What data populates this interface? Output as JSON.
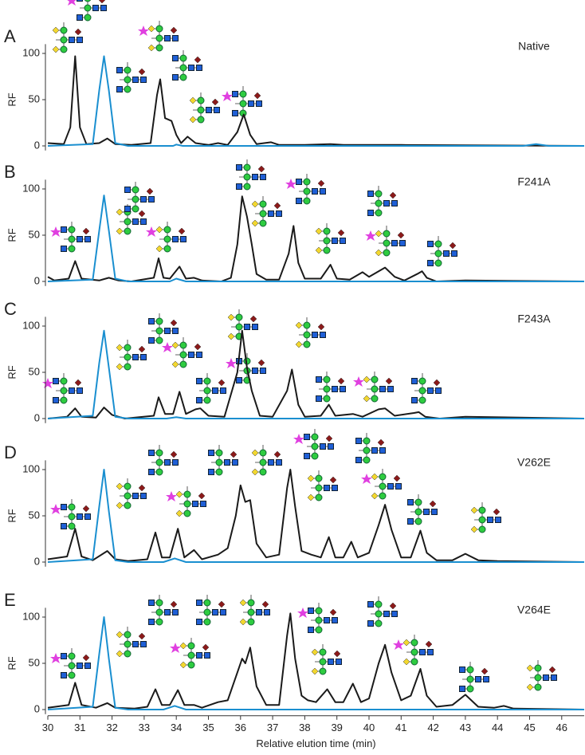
{
  "chart_data": [
    {
      "type": "line",
      "label": "A",
      "title": "Native",
      "ylabel": "RF",
      "ylim": [
        -5,
        110
      ],
      "yticks": [
        0,
        50,
        100
      ],
      "xlim": [
        30,
        46.7
      ],
      "series": [
        {
          "color": "#1a1a1a",
          "x": [
            30,
            30.5,
            30.7,
            30.85,
            31,
            31.2,
            31.6,
            31.85,
            32.1,
            32.6,
            33.2,
            33.4,
            33.5,
            33.65,
            33.85,
            34,
            34.15,
            34.35,
            34.6,
            35,
            35.3,
            35.6,
            35.9,
            36.1,
            36.3,
            36.5,
            36.95,
            37.2,
            38,
            38.8,
            39.2,
            41,
            46.7
          ],
          "values": [
            3,
            2,
            20,
            97,
            20,
            2,
            3,
            8,
            2,
            1,
            3,
            55,
            72,
            30,
            27,
            12,
            3,
            10,
            3,
            1,
            3,
            1,
            15,
            34,
            12,
            2,
            4,
            1,
            1,
            2,
            1,
            1,
            0
          ]
        },
        {
          "color": "#1a8fd0",
          "x": [
            30,
            31.4,
            31.6,
            31.75,
            31.9,
            32.1,
            32.5,
            33.9,
            34,
            34.2,
            44.8,
            45.2,
            45.6,
            46.7
          ],
          "values": [
            0,
            2,
            60,
            97,
            60,
            3,
            0,
            0,
            1.5,
            0,
            0,
            2,
            0,
            0
          ]
        }
      ]
    },
    {
      "type": "line",
      "label": "B",
      "title": "F241A",
      "ylabel": "RF",
      "ylim": [
        -5,
        110
      ],
      "yticks": [
        0,
        50,
        100
      ],
      "xlim": [
        30,
        46.7
      ],
      "series": [
        {
          "color": "#1a1a1a",
          "x": [
            30,
            30.2,
            30.65,
            30.85,
            31.05,
            31.6,
            31.9,
            32.2,
            32.6,
            33.3,
            33.45,
            33.6,
            33.8,
            34.1,
            34.3,
            34.55,
            34.8,
            35.4,
            35.7,
            35.9,
            36.05,
            36.2,
            36.35,
            36.5,
            36.8,
            37.2,
            37.5,
            37.65,
            37.8,
            38,
            38.5,
            38.8,
            39,
            39.4,
            39.8,
            40,
            40.5,
            40.8,
            41.1,
            41.5,
            41.65,
            41.8,
            42.1,
            43,
            46.7
          ],
          "values": [
            5,
            1,
            3,
            22,
            3,
            1,
            4,
            1,
            0,
            4,
            25,
            4,
            3,
            16,
            3,
            4,
            1,
            0,
            4,
            40,
            92,
            70,
            40,
            8,
            2,
            2,
            30,
            60,
            20,
            3,
            3,
            18,
            3,
            2,
            10,
            5,
            15,
            5,
            1,
            8,
            11,
            4,
            0,
            1,
            0
          ]
        },
        {
          "color": "#1a8fd0",
          "x": [
            30,
            31.4,
            31.6,
            31.75,
            31.9,
            32.1,
            32.5,
            33.8,
            34,
            34.3,
            46.7
          ],
          "values": [
            0,
            2,
            55,
            93,
            55,
            3,
            0,
            0,
            3,
            0,
            0
          ]
        }
      ]
    },
    {
      "type": "line",
      "label": "C",
      "title": "F243A",
      "ylabel": "RF",
      "ylim": [
        -5,
        110
      ],
      "yticks": [
        0,
        50,
        100
      ],
      "xlim": [
        30,
        46.7
      ],
      "series": [
        {
          "color": "#1a1a1a",
          "x": [
            30,
            30.6,
            30.85,
            31.05,
            31.5,
            31.75,
            32,
            32.4,
            33.3,
            33.45,
            33.65,
            33.9,
            34.1,
            34.3,
            34.6,
            34.75,
            35,
            35.5,
            35.9,
            36.05,
            36.2,
            36.35,
            36.6,
            37,
            37.45,
            37.6,
            37.8,
            38,
            38.5,
            38.75,
            38.95,
            39.5,
            39.8,
            40.3,
            40.5,
            40.8,
            41.4,
            41.55,
            41.75,
            42.2,
            43,
            46.7
          ],
          "values": [
            0,
            2,
            11,
            2,
            1,
            12,
            4,
            0,
            3,
            23,
            5,
            5,
            29,
            5,
            10,
            11,
            3,
            2,
            50,
            95,
            55,
            30,
            3,
            2,
            30,
            53,
            15,
            2,
            3,
            15,
            3,
            5,
            2,
            10,
            11,
            3,
            6,
            7,
            2,
            0,
            2,
            0
          ]
        },
        {
          "color": "#1a8fd0",
          "x": [
            30,
            31.4,
            31.6,
            31.75,
            31.9,
            32.1,
            32.5,
            33.7,
            34,
            34.3,
            46.7
          ],
          "values": [
            0,
            3,
            60,
            95,
            55,
            2,
            0,
            0,
            1.5,
            0,
            0
          ]
        }
      ]
    },
    {
      "type": "line",
      "label": "D",
      "title": "V262E",
      "ylabel": "RF",
      "ylim": [
        -5,
        110
      ],
      "yticks": [
        0,
        50,
        100
      ],
      "xlim": [
        30,
        46.7
      ],
      "series": [
        {
          "color": "#1a1a1a",
          "x": [
            30,
            30.6,
            30.85,
            31.05,
            31.4,
            31.85,
            32.1,
            32.5,
            33.1,
            33.35,
            33.55,
            33.8,
            34.05,
            34.25,
            34.55,
            34.8,
            35.3,
            35.6,
            35.85,
            36,
            36.15,
            36.3,
            36.5,
            36.8,
            37.2,
            37.45,
            37.55,
            37.7,
            37.9,
            38.2,
            38.5,
            38.75,
            38.95,
            39.2,
            39.45,
            39.65,
            40,
            40.3,
            40.5,
            40.7,
            41,
            41.3,
            41.6,
            41.8,
            42.1,
            42.6,
            43,
            43.4,
            44,
            46.7
          ],
          "values": [
            3,
            6,
            36,
            6,
            2,
            12,
            3,
            1,
            3,
            32,
            5,
            5,
            36,
            5,
            13,
            3,
            8,
            15,
            50,
            83,
            65,
            67,
            20,
            5,
            8,
            80,
            100,
            60,
            12,
            8,
            5,
            27,
            5,
            5,
            22,
            5,
            10,
            40,
            62,
            35,
            5,
            5,
            34,
            10,
            2,
            2,
            9,
            2,
            1,
            0
          ]
        },
        {
          "color": "#1a8fd0",
          "x": [
            30,
            31.4,
            31.6,
            31.75,
            31.9,
            32.1,
            32.5,
            33.6,
            33.95,
            34.3,
            46.7
          ],
          "values": [
            0,
            3,
            60,
            100,
            55,
            2,
            0,
            0,
            4,
            0,
            0
          ]
        }
      ]
    },
    {
      "type": "line",
      "label": "E",
      "title": "V264E",
      "ylabel": "RF",
      "ylim": [
        -5,
        110
      ],
      "yticks": [
        0,
        50,
        100
      ],
      "xlim": [
        30,
        46.7
      ],
      "xticks": [
        30,
        31,
        32,
        33,
        34,
        35,
        36,
        37,
        38,
        39,
        40,
        41,
        42,
        43,
        44,
        45,
        46
      ],
      "xlabel": "Relative elution time (min)",
      "series": [
        {
          "color": "#1a1a1a",
          "x": [
            30,
            30.65,
            30.85,
            31.05,
            31.5,
            31.85,
            32.1,
            32.7,
            33.1,
            33.35,
            33.55,
            33.8,
            34.05,
            34.25,
            34.55,
            34.8,
            35.3,
            35.6,
            35.9,
            36.05,
            36.15,
            36.3,
            36.5,
            36.8,
            37.2,
            37.45,
            37.55,
            37.7,
            37.9,
            38.1,
            38.35,
            38.7,
            38.95,
            39.2,
            39.5,
            39.75,
            40,
            40.3,
            40.5,
            40.7,
            41,
            41.3,
            41.6,
            41.8,
            42.1,
            42.6,
            43,
            43.4,
            43.9,
            44.2,
            44.5,
            46.7
          ],
          "values": [
            2,
            5,
            29,
            5,
            2,
            7,
            2,
            1,
            3,
            22,
            5,
            5,
            21,
            5,
            5,
            2,
            8,
            10,
            40,
            55,
            50,
            67,
            25,
            5,
            5,
            80,
            104,
            55,
            15,
            10,
            8,
            22,
            8,
            8,
            28,
            8,
            12,
            50,
            70,
            40,
            10,
            15,
            44,
            15,
            3,
            5,
            16,
            3,
            2,
            4,
            1,
            0
          ]
        },
        {
          "color": "#1a8fd0",
          "x": [
            30,
            31.4,
            31.6,
            31.75,
            31.9,
            32.1,
            32.5,
            33.6,
            33.95,
            34.3,
            46.7
          ],
          "values": [
            0,
            3,
            60,
            100,
            55,
            2,
            0,
            0,
            4,
            0,
            0
          ]
        }
      ]
    }
  ]
}
